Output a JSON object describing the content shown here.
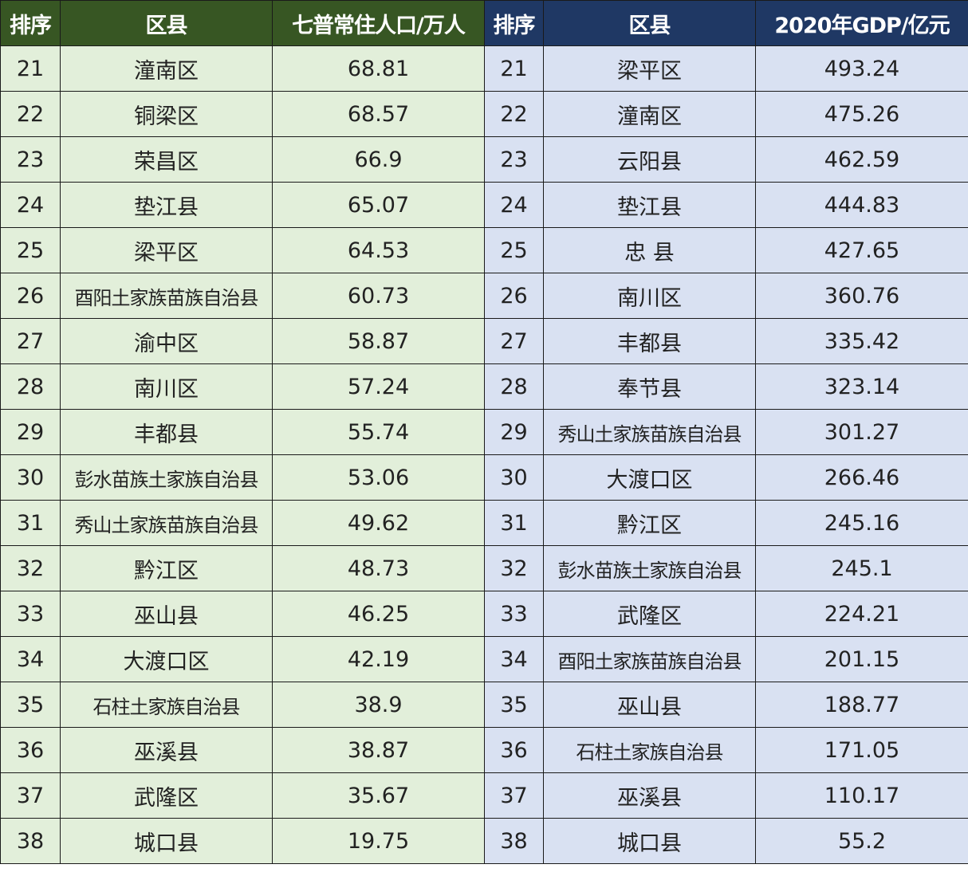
{
  "headers": {
    "left": [
      "排序",
      "区县",
      "七普常住人口/万人"
    ],
    "right": [
      "排序",
      "区县",
      "2020年GDP/亿元"
    ]
  },
  "colors": {
    "left_header": "#375623",
    "left_body": "#e2efda",
    "right_header": "#1f3864",
    "right_body": "#d9e1f2"
  },
  "rows": [
    {
      "l_rank": "21",
      "l_name": "潼南区",
      "l_value": "68.81",
      "r_rank": "21",
      "r_name": "梁平区",
      "r_value": "493.24"
    },
    {
      "l_rank": "22",
      "l_name": "铜梁区",
      "l_value": "68.57",
      "r_rank": "22",
      "r_name": "潼南区",
      "r_value": "475.26"
    },
    {
      "l_rank": "23",
      "l_name": "荣昌区",
      "l_value": "66.9",
      "r_rank": "23",
      "r_name": "云阳县",
      "r_value": "462.59"
    },
    {
      "l_rank": "24",
      "l_name": "垫江县",
      "l_value": "65.07",
      "r_rank": "24",
      "r_name": "垫江县",
      "r_value": "444.83"
    },
    {
      "l_rank": "25",
      "l_name": "梁平区",
      "l_value": "64.53",
      "r_rank": "25",
      "r_name": "忠 县",
      "r_value": "427.65"
    },
    {
      "l_rank": "26",
      "l_name": "酉阳土家族苗族自治县",
      "l_value": "60.73",
      "r_rank": "26",
      "r_name": "南川区",
      "r_value": "360.76"
    },
    {
      "l_rank": "27",
      "l_name": "渝中区",
      "l_value": "58.87",
      "r_rank": "27",
      "r_name": "丰都县",
      "r_value": "335.42"
    },
    {
      "l_rank": "28",
      "l_name": "南川区",
      "l_value": "57.24",
      "r_rank": "28",
      "r_name": "奉节县",
      "r_value": "323.14"
    },
    {
      "l_rank": "29",
      "l_name": "丰都县",
      "l_value": "55.74",
      "r_rank": "29",
      "r_name": "秀山土家族苗族自治县",
      "r_value": "301.27"
    },
    {
      "l_rank": "30",
      "l_name": "彭水苗族土家族自治县",
      "l_value": "53.06",
      "r_rank": "30",
      "r_name": "大渡口区",
      "r_value": "266.46"
    },
    {
      "l_rank": "31",
      "l_name": "秀山土家族苗族自治县",
      "l_value": "49.62",
      "r_rank": "31",
      "r_name": "黔江区",
      "r_value": "245.16"
    },
    {
      "l_rank": "32",
      "l_name": "黔江区",
      "l_value": "48.73",
      "r_rank": "32",
      "r_name": "彭水苗族土家族自治县",
      "r_value": "245.1"
    },
    {
      "l_rank": "33",
      "l_name": "巫山县",
      "l_value": "46.25",
      "r_rank": "33",
      "r_name": "武隆区",
      "r_value": "224.21"
    },
    {
      "l_rank": "34",
      "l_name": "大渡口区",
      "l_value": "42.19",
      "r_rank": "34",
      "r_name": "酉阳土家族苗族自治县",
      "r_value": "201.15"
    },
    {
      "l_rank": "35",
      "l_name": "石柱土家族自治县",
      "l_value": "38.9",
      "r_rank": "35",
      "r_name": "巫山县",
      "r_value": "188.77"
    },
    {
      "l_rank": "36",
      "l_name": "巫溪县",
      "l_value": "38.87",
      "r_rank": "36",
      "r_name": "石柱土家族自治县",
      "r_value": "171.05"
    },
    {
      "l_rank": "37",
      "l_name": "武隆区",
      "l_value": "35.67",
      "r_rank": "37",
      "r_name": "巫溪县",
      "r_value": "110.17"
    },
    {
      "l_rank": "38",
      "l_name": "城口县",
      "l_value": "19.75",
      "r_rank": "38",
      "r_name": "城口县",
      "r_value": "55.2"
    }
  ]
}
